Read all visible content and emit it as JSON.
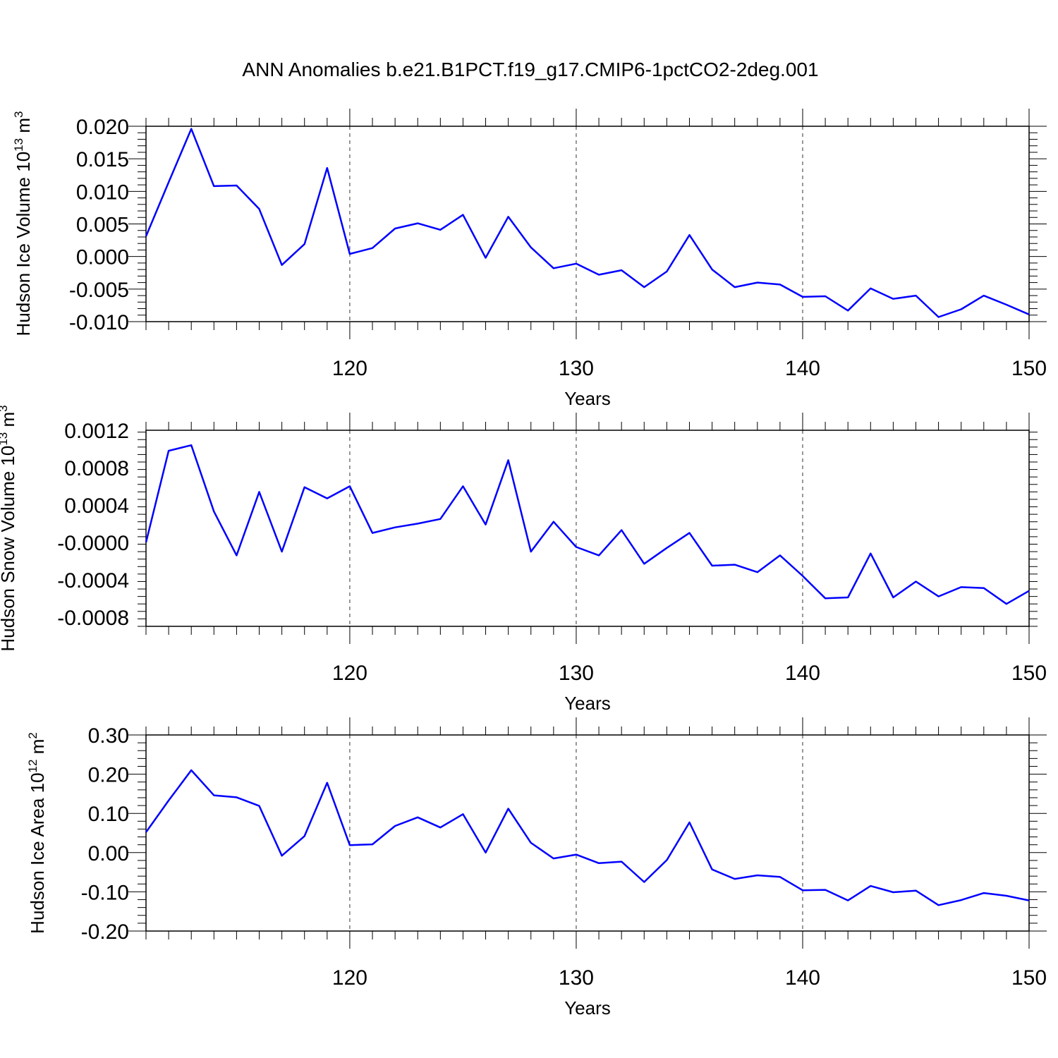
{
  "title": "ANN Anomalies b.e21.B1PCT.f19_g17.CMIP6-1pctCO2-2deg.001",
  "colors": {
    "line": "#0000ff",
    "axis": "#000000"
  },
  "chart_data": [
    {
      "type": "line",
      "xlabel": "Years",
      "ylabel": "Hudson Ice Volume 10",
      "ylabel_sup": "13",
      "ylabel_unit": " m",
      "ylabel_unit_sup": "3",
      "xlim": [
        111,
        150
      ],
      "ylim": [
        -0.01,
        0.02
      ],
      "xticks": [
        120,
        130,
        140,
        150
      ],
      "xtick_labels": [
        "120",
        "130",
        "140",
        "150"
      ],
      "yticks": [
        0.02,
        0.015,
        0.01,
        0.005,
        0.0,
        -0.005,
        -0.01
      ],
      "ytick_labels": [
        "0.020",
        "0.015",
        "0.010",
        "0.005",
        "0.000",
        "-0.005",
        "-0.010"
      ],
      "grid": "vertical-dashed",
      "x": [
        111,
        112,
        113,
        114,
        115,
        116,
        117,
        118,
        119,
        120,
        121,
        122,
        123,
        124,
        125,
        126,
        127,
        128,
        129,
        130,
        131,
        132,
        133,
        134,
        135,
        136,
        137,
        138,
        139,
        140,
        141,
        142,
        143,
        144,
        145,
        146,
        147,
        148,
        149,
        150
      ],
      "values": [
        0.0031,
        0.0114,
        0.0196,
        0.0108,
        0.0109,
        0.0073,
        -0.0013,
        0.0019,
        0.0136,
        0.0004,
        0.0013,
        0.0043,
        0.0051,
        0.0041,
        0.0064,
        -0.0002,
        0.0061,
        0.0014,
        -0.0018,
        -0.0011,
        -0.0028,
        -0.0021,
        -0.0047,
        -0.0023,
        0.0033,
        -0.002,
        -0.0047,
        -0.004,
        -0.0043,
        -0.0062,
        -0.0061,
        -0.0083,
        -0.0049,
        -0.0065,
        -0.006,
        -0.0093,
        -0.0081,
        -0.006,
        -0.0074,
        -0.0089
      ]
    },
    {
      "type": "line",
      "xlabel": "Years",
      "ylabel": "Hudson Snow Volume 10",
      "ylabel_sup": "13",
      "ylabel_unit": " m",
      "ylabel_unit_sup": "3",
      "xlim": [
        111,
        150
      ],
      "ylim": [
        -0.0009,
        0.0012
      ],
      "xticks": [
        120,
        130,
        140,
        150
      ],
      "xtick_labels": [
        "120",
        "130",
        "140",
        "150"
      ],
      "yticks": [
        0.0012,
        0.0008,
        0.0004,
        0.0,
        -0.0004,
        -0.0008
      ],
      "ytick_labels": [
        "0.0012",
        "0.0008",
        "0.0004",
        "-0.0000",
        "-0.0004",
        "-0.0008"
      ],
      "grid": "vertical-dashed",
      "x": [
        111,
        112,
        113,
        114,
        115,
        116,
        117,
        118,
        119,
        120,
        121,
        122,
        123,
        124,
        125,
        126,
        127,
        128,
        129,
        130,
        131,
        132,
        133,
        134,
        135,
        136,
        137,
        138,
        139,
        140,
        141,
        142,
        143,
        144,
        145,
        146,
        147,
        148,
        149,
        150
      ],
      "values": [
        0.0,
        0.00098,
        0.00104,
        0.00033,
        -0.00014,
        0.00054,
        -0.0001,
        0.00059,
        0.00047,
        0.0006,
        0.0001,
        0.00016,
        0.0002,
        0.00025,
        0.0006,
        0.00019,
        0.00088,
        -0.0001,
        0.00022,
        -5e-05,
        -0.00014,
        0.00013,
        -0.00023,
        -6e-05,
        0.0001,
        -0.00025,
        -0.00024,
        -0.00032,
        -0.00014,
        -0.00036,
        -0.0006,
        -0.00059,
        -0.00012,
        -0.00059,
        -0.00042,
        -0.00058,
        -0.00048,
        -0.00049,
        -0.00066,
        -0.00052
      ]
    },
    {
      "type": "line",
      "xlabel": "Years",
      "ylabel": "Hudson Ice Area 10",
      "ylabel_sup": "12",
      "ylabel_unit": " m",
      "ylabel_unit_sup": "2",
      "xlim": [
        111,
        150
      ],
      "ylim": [
        -0.2,
        0.3
      ],
      "xticks": [
        120,
        130,
        140,
        150
      ],
      "xtick_labels": [
        "120",
        "130",
        "140",
        "150"
      ],
      "yticks": [
        0.3,
        0.2,
        0.1,
        0.0,
        -0.1,
        -0.2
      ],
      "ytick_labels": [
        "0.30",
        "0.20",
        "0.10",
        "0.00",
        "-0.10",
        "-0.20"
      ],
      "grid": "vertical-dashed",
      "x": [
        111,
        112,
        113,
        114,
        115,
        116,
        117,
        118,
        119,
        120,
        121,
        122,
        123,
        124,
        125,
        126,
        127,
        128,
        129,
        130,
        131,
        132,
        133,
        134,
        135,
        136,
        137,
        138,
        139,
        140,
        141,
        142,
        143,
        144,
        145,
        146,
        147,
        148,
        149,
        150
      ],
      "values": [
        0.052,
        0.133,
        0.21,
        0.146,
        0.141,
        0.119,
        -0.008,
        0.042,
        0.178,
        0.019,
        0.021,
        0.068,
        0.09,
        0.064,
        0.098,
        0.0,
        0.112,
        0.025,
        -0.015,
        -0.005,
        -0.027,
        -0.023,
        -0.075,
        -0.019,
        0.077,
        -0.043,
        -0.067,
        -0.058,
        -0.062,
        -0.096,
        -0.095,
        -0.122,
        -0.085,
        -0.101,
        -0.097,
        -0.134,
        -0.121,
        -0.103,
        -0.11,
        -0.122
      ]
    }
  ]
}
